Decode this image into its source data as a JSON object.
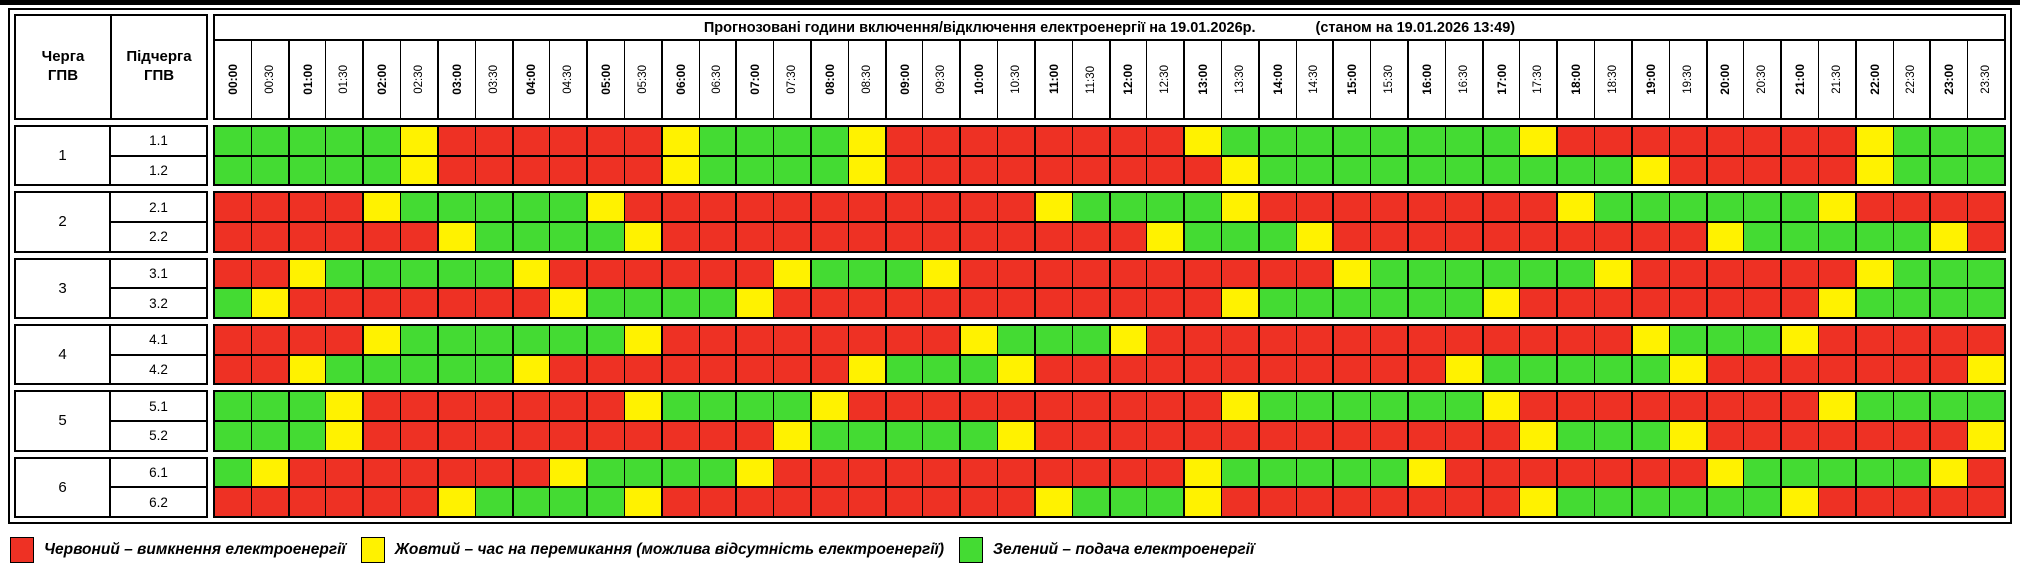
{
  "header": {
    "title": "Прогнозовані години включення/відключення електроенергії на 19.01.2026р.",
    "timestamp_note": "(станом на 19.01.2026 13:49)",
    "queue_col": "Черга\nГПВ",
    "subqueue_col": "Підчерга\nГПВ",
    "times": [
      "00:00",
      "00:30",
      "01:00",
      "01:30",
      "02:00",
      "02:30",
      "03:00",
      "03:30",
      "04:00",
      "04:30",
      "05:00",
      "05:30",
      "06:00",
      "06:30",
      "07:00",
      "07:30",
      "08:00",
      "08:30",
      "09:00",
      "09:30",
      "10:00",
      "10:30",
      "11:00",
      "11:30",
      "12:00",
      "12:30",
      "13:00",
      "13:30",
      "14:00",
      "14:30",
      "15:00",
      "15:30",
      "16:00",
      "16:30",
      "17:00",
      "17:30",
      "18:00",
      "18:30",
      "19:00",
      "19:30",
      "20:00",
      "20:30",
      "21:00",
      "21:30",
      "22:00",
      "22:30",
      "23:00",
      "23:30"
    ]
  },
  "colors": {
    "red": "#EE3124",
    "yellow": "#FFF200",
    "green": "#44DB33"
  },
  "legend": [
    {
      "color_key": "red",
      "label": "Червоний – вимкнення електроенергії"
    },
    {
      "color_key": "yellow",
      "label": "Жовтий – час на перемикання (можлива відсутність електроенергії)"
    },
    {
      "color_key": "green",
      "label": "Зелений – подача електроенергії"
    }
  ],
  "slot_legend": "R=red (outage), Y=yellow (switching), G=green (power on); 48 half-hour slots 00:00-23:30",
  "queues": [
    {
      "queue": "1",
      "subqueues": [
        {
          "label": "1.1",
          "slots": "GGGGGYRRRRRRYGGGGYRRRRRRRRYGGGGGGGGYRRRRRRRRYGGG"
        },
        {
          "label": "1.2",
          "slots": "GGGGGYRRRRRRYGGGGYRRRRRRRRRYGGGGGGGGGGYRRRRRYGGG"
        }
      ]
    },
    {
      "queue": "2",
      "subqueues": [
        {
          "label": "2.1",
          "slots": "RRRRYGGGGGYRRRRRRRRRRRYGGGGYRRRRRRRRYGGGGGGYRRRR"
        },
        {
          "label": "2.2",
          "slots": "RRRRRRYGGGGYRRRRRRRRRRRRRYGGGYRRRRRRRRRRYGGGGGYR"
        }
      ]
    },
    {
      "queue": "3",
      "subqueues": [
        {
          "label": "3.1",
          "slots": "RRYGGGGGYRRRRRRYGGGYRRRRRRRRRRYGGGGGGYRRRRRRYGGG"
        },
        {
          "label": "3.2",
          "slots": "GYRRRRRRRYGGGGYRRRRRRRRRRRRYGGGGGGYRRRRRRRRYGGGG"
        }
      ]
    },
    {
      "queue": "4",
      "subqueues": [
        {
          "label": "4.1",
          "slots": "RRRRYGGGGGGYRRRRRRRRYGGGYRRRRRRRRRRRRRYGGGYRRRRR"
        },
        {
          "label": "4.2",
          "slots": "RRYGGGGGYRRRRRRRRYGGGYRRRRRRRRRRRYGGGGGYRRRRRRRY"
        }
      ]
    },
    {
      "queue": "5",
      "subqueues": [
        {
          "label": "5.1",
          "slots": "GGGYRRRRRRRYGGGGYRRRRRRRRRRYGGGGGGYRRRRRRRRYGGGG"
        },
        {
          "label": "5.2",
          "slots": "GGGYRRRRRRRRRRRYGGGGGYRRRRRRRRRRRRRYGGGYRRRRRRRY"
        }
      ]
    },
    {
      "queue": "6",
      "subqueues": [
        {
          "label": "6.1",
          "slots": "GYRRRRRRRYGGGGYRRRRRRRRRRRYGGGGGYRRRRRRRYGGGGGYR"
        },
        {
          "label": "6.2",
          "slots": "RRRRRRYGGGGYRRRRRRRRRRYGGGYRRRRRRRRYGGGGGGYRRRRR"
        }
      ]
    }
  ]
}
